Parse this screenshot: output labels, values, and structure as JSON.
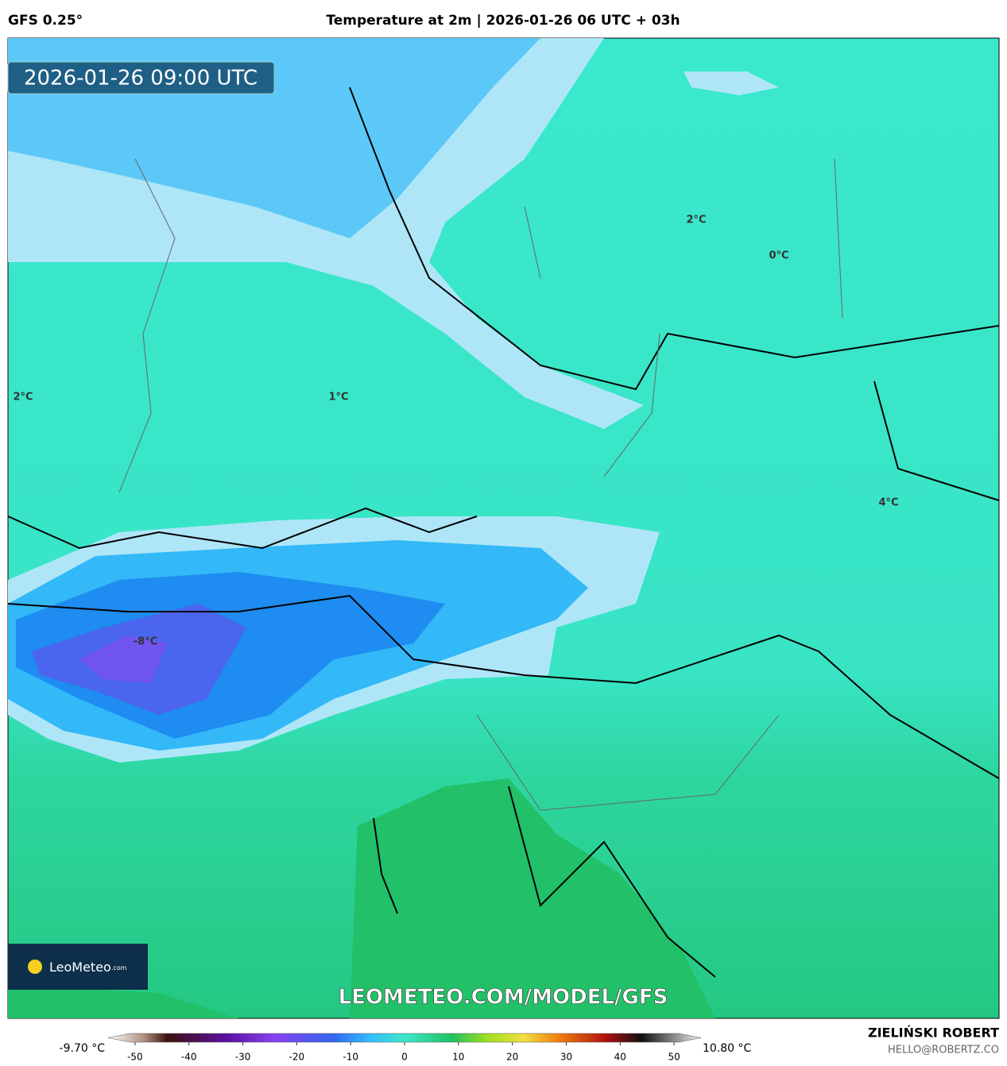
{
  "header": {
    "model": "GFS 0.25°",
    "title": "Temperature at 2m | 2026-01-26 06 UTC + 03h"
  },
  "valid_time": "2026-01-26 09:00 UTC",
  "map_labels": [
    {
      "text": "2°C"
    },
    {
      "text": "0°C"
    },
    {
      "text": "2°C"
    },
    {
      "text": "1°C"
    },
    {
      "text": "4°C"
    },
    {
      "text": "-8°C"
    }
  ],
  "logo": {
    "name": "LeoMeteo",
    "suffix": ".com"
  },
  "watermark": "LEOMETEO.COM/MODEL/GFS",
  "legend": {
    "min_label": "-9.70 °C",
    "max_label": "10.80 °C",
    "lim": [
      -55,
      55
    ],
    "ticks": [
      -50,
      -40,
      -30,
      -20,
      -10,
      0,
      10,
      20,
      30,
      40,
      50
    ]
  },
  "footer": {
    "author": "ZIELIŃSKI ROBERT",
    "email": "HELLO@ROBERTZ.CO"
  }
}
